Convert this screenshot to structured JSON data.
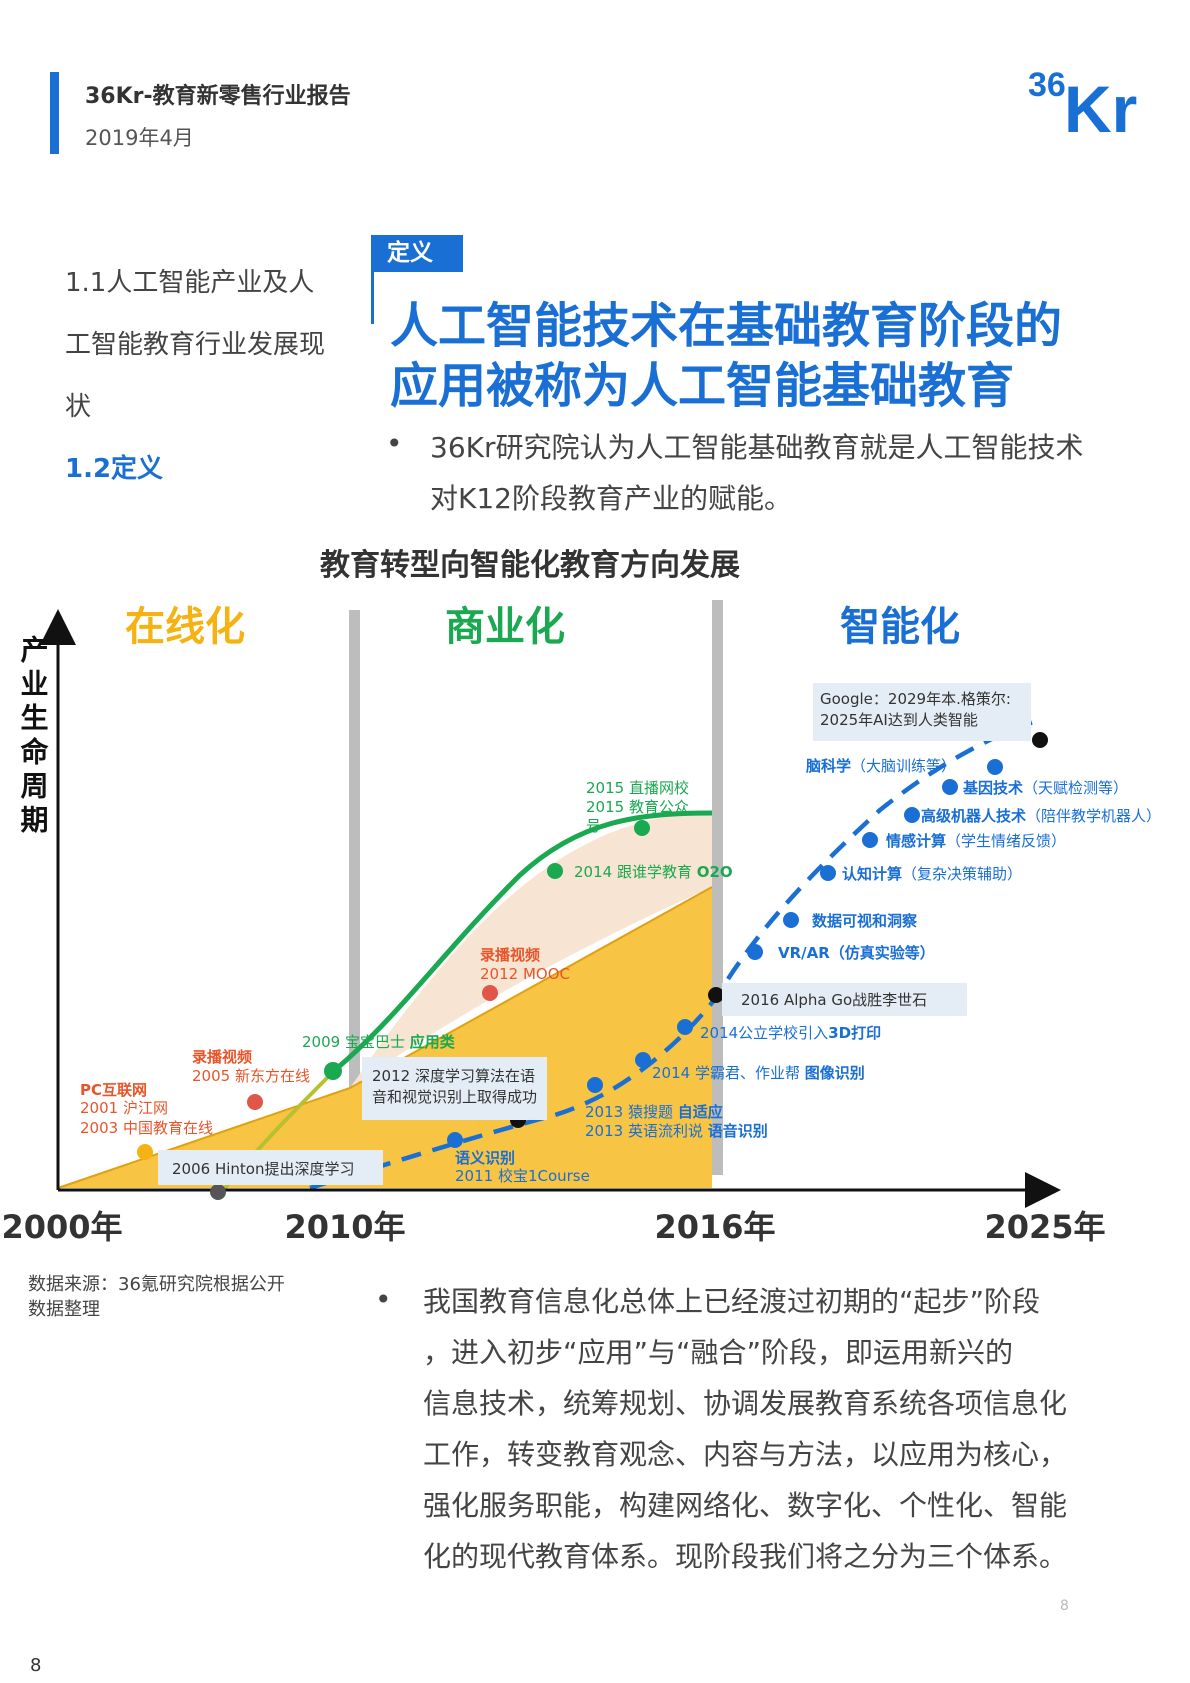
{
  "header": {
    "title": "36Kr-教育新零售行业报告",
    "date": "2019年4月",
    "logo_text": "36Kr"
  },
  "toc": {
    "line1": "1.1人工智能产业及人",
    "line2": "工智能教育行业发展现",
    "line3": "状",
    "current": "1.2定义"
  },
  "definition": {
    "badge": "定义",
    "headline_line1": "人工智能技术在基础教育阶段的",
    "headline_line2": "应用被称为人工智能基础教育",
    "bullet_line1": "36Kr研究院认为人工智能基础教育就是人工智能技术",
    "bullet_line2": "对K12阶段教育产业的赋能。"
  },
  "chart_data": {
    "type": "timeline",
    "title": "教育转型向智能化教育方向发展",
    "ylabel": "产业生命周期",
    "phases": [
      {
        "name": "在线化",
        "color": "#f5b212"
      },
      {
        "name": "商业化",
        "color": "#1aa850"
      },
      {
        "name": "智能化",
        "color": "#1a6fd4"
      }
    ],
    "x_ticks": [
      "2000年",
      "2010年",
      "2016年",
      "2025年"
    ],
    "events": {
      "pc_title": "PC互联网",
      "pc_2001": "2001 沪江网",
      "pc_2003": "2003 中国教育在线",
      "rec2005_title": "录播视频",
      "rec2005": "2005 新东方在线",
      "rec2012_title": "录播视频",
      "rec2012": "2012 MOOC",
      "g2009": "2009 宝宝巴士",
      "g2009_bold": "应用类",
      "g2014_text": "2014 跟谁学教育",
      "g2014_bold": "O2O",
      "g2015_1": "2015 直播网校",
      "g2015_2": "2015 教育公众",
      "g2015_3": "号",
      "hinton": "2006 Hinton提出深度学习",
      "dl2012_1": "2012 深度学习算法在语",
      "dl2012_2": "音和视觉识别上取得成功",
      "alphago": "2016 Alpha Go战胜李世石",
      "google_1": "Google：2029年本.格策尔:",
      "google_2": "2025年AI达到人类智能",
      "semantic_bold": "语义识别",
      "semantic": "2011 校宝1Course",
      "adaptive_text": "2013 猿搜题",
      "adaptive_bold": "自适应",
      "speech_text": "2013 英语流利说",
      "speech_bold": "语音识别",
      "image_text": "2014 学霸君、作业帮",
      "image_bold": "图像识别",
      "print_text": "2014公立学校引入",
      "print_bold": "3D打印",
      "vrar_bold": "VR/AR",
      "vrar": "（仿真实验等）",
      "dataviz_bold": "数据可视和洞察",
      "cognitive_bold": "认知计算",
      "cognitive": "（复杂决策辅助）",
      "affective_bold": "情感计算",
      "affective": "（学生情绪反馈）",
      "robot_bold": "高级机器人技术",
      "robot": "（陪伴教学机器人）",
      "gene_bold": "基因技术",
      "gene": "（天赋检测等）",
      "brain_bold": "脑科学",
      "brain": "（大脑训练等）"
    }
  },
  "source": {
    "line1": "数据来源：36氪研究院根据公开",
    "line2": "数据整理"
  },
  "paragraph2": [
    "我国教育信息化总体上已经渡过初期的“起步”阶段",
    "，进入初步“应用”与“融合”阶段，即运用新兴的",
    "信息技术，统筹规划、协调发展教育系统各项信息化",
    "工作，转变教育观念、内容与方法，以应用为核心，",
    "强化服务职能，构建网络化、数字化、个性化、智能",
    "化的现代教育体系。现阶段我们将之分为三个体系。"
  ],
  "page": {
    "mark": "8",
    "number": "8"
  },
  "colors": {
    "accent": "#1a6fd4",
    "orange": "#f5b212",
    "green": "#1aa850",
    "red_label": "#e8552a"
  }
}
